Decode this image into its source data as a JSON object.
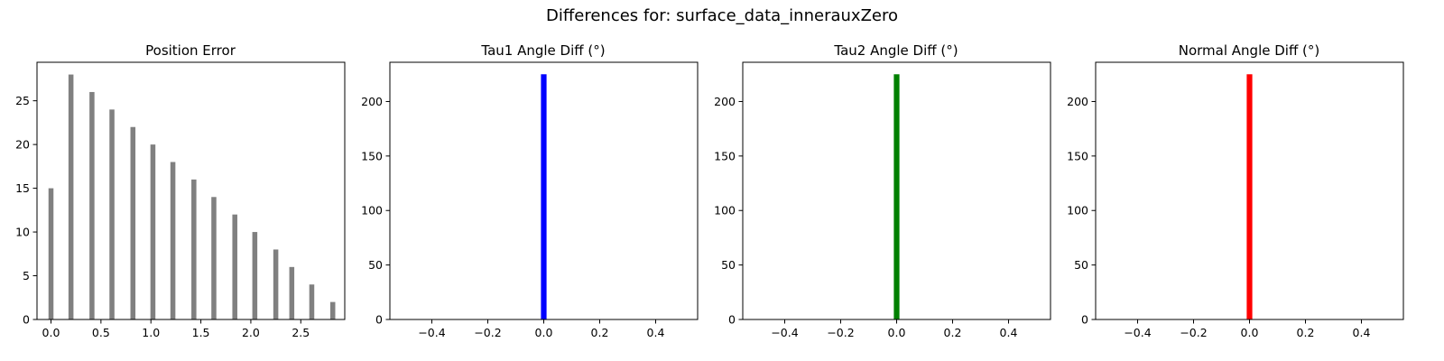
{
  "suptitle": "Differences for: surface_data_innerauxZero",
  "chart_data": [
    {
      "type": "bar",
      "title": "Position Error",
      "color": "#808080",
      "xlim": [
        -0.14,
        2.94
      ],
      "ylim": [
        0,
        29.4
      ],
      "xticks": [
        0.0,
        0.5,
        1.0,
        1.5,
        2.0,
        2.5
      ],
      "yticks": [
        0,
        5,
        10,
        15,
        20,
        25
      ],
      "bar_width": 0.05,
      "x": [
        0.0,
        0.2,
        0.41,
        0.61,
        0.82,
        1.02,
        1.22,
        1.43,
        1.63,
        1.84,
        2.04,
        2.25,
        2.41,
        2.61,
        2.82
      ],
      "values": [
        15,
        28,
        26,
        24,
        22,
        20,
        18,
        16,
        14,
        12,
        10,
        8,
        6,
        4,
        2
      ]
    },
    {
      "type": "bar",
      "title": "Tau1 Angle Diff (°)",
      "color": "#0000ff",
      "xlim": [
        -0.55,
        0.55
      ],
      "ylim": [
        0,
        236
      ],
      "xticks": [
        -0.4,
        -0.2,
        0.0,
        0.2,
        0.4
      ],
      "yticks": [
        0,
        50,
        100,
        150,
        200
      ],
      "bar_width": 0.02,
      "x": [
        0.0
      ],
      "values": [
        225
      ]
    },
    {
      "type": "bar",
      "title": "Tau2 Angle Diff (°)",
      "color": "#008000",
      "xlim": [
        -0.55,
        0.55
      ],
      "ylim": [
        0,
        236
      ],
      "xticks": [
        -0.4,
        -0.2,
        0.0,
        0.2,
        0.4
      ],
      "yticks": [
        0,
        50,
        100,
        150,
        200
      ],
      "bar_width": 0.02,
      "x": [
        0.0
      ],
      "values": [
        225
      ]
    },
    {
      "type": "bar",
      "title": "Normal Angle Diff (°)",
      "color": "#ff0000",
      "xlim": [
        -0.55,
        0.55
      ],
      "ylim": [
        0,
        236
      ],
      "xticks": [
        -0.4,
        -0.2,
        0.0,
        0.2,
        0.4
      ],
      "yticks": [
        0,
        50,
        100,
        150,
        200
      ],
      "bar_width": 0.02,
      "x": [
        0.0
      ],
      "values": [
        225
      ]
    }
  ]
}
